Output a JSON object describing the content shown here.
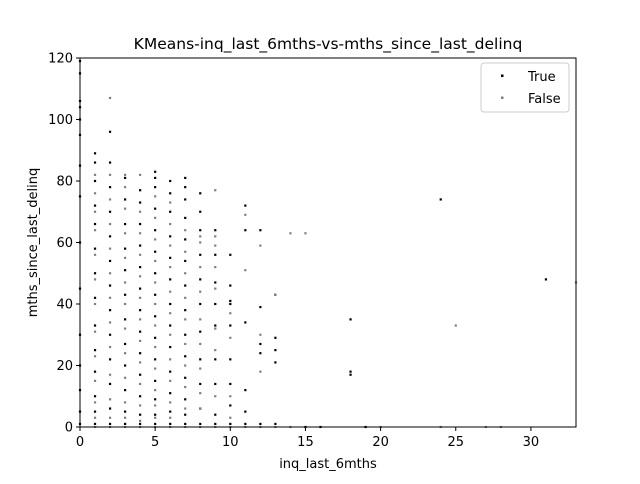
{
  "chart_data": {
    "type": "scatter",
    "title": "KMeans-inq_last_6mths-vs-mths_since_last_delinq",
    "xlabel": "inq_last_6mths",
    "ylabel": "mths_since_last_delinq",
    "xlim": [
      0,
      33
    ],
    "ylim": [
      0,
      120
    ],
    "xticks": [
      "0",
      "5",
      "10",
      "15",
      "20",
      "25",
      "30"
    ],
    "yticks": [
      "0",
      "20",
      "40",
      "60",
      "80",
      "100",
      "120"
    ],
    "grid": false,
    "legend_position": "top-right",
    "series": [
      {
        "name": "True",
        "color": "#000000",
        "points": [
          [
            0,
            1
          ],
          [
            0,
            5
          ],
          [
            0,
            12
          ],
          [
            0,
            20
          ],
          [
            0,
            30
          ],
          [
            0,
            45
          ],
          [
            0,
            60
          ],
          [
            0,
            75
          ],
          [
            0,
            85
          ],
          [
            0,
            95
          ],
          [
            0,
            100
          ],
          [
            0,
            104
          ],
          [
            0,
            106
          ],
          [
            0,
            115
          ],
          [
            0,
            119
          ],
          [
            1,
            1
          ],
          [
            1,
            5
          ],
          [
            1,
            10
          ],
          [
            1,
            18
          ],
          [
            1,
            25
          ],
          [
            1,
            33
          ],
          [
            1,
            42
          ],
          [
            1,
            50
          ],
          [
            1,
            58
          ],
          [
            1,
            66
          ],
          [
            1,
            72
          ],
          [
            1,
            80
          ],
          [
            1,
            86
          ],
          [
            1,
            89
          ],
          [
            2,
            1
          ],
          [
            2,
            6
          ],
          [
            2,
            14
          ],
          [
            2,
            22
          ],
          [
            2,
            30
          ],
          [
            2,
            38
          ],
          [
            2,
            46
          ],
          [
            2,
            54
          ],
          [
            2,
            62
          ],
          [
            2,
            70
          ],
          [
            2,
            78
          ],
          [
            2,
            86
          ],
          [
            2,
            96
          ],
          [
            3,
            1
          ],
          [
            3,
            5
          ],
          [
            3,
            12
          ],
          [
            3,
            20
          ],
          [
            3,
            27
          ],
          [
            3,
            35
          ],
          [
            3,
            43
          ],
          [
            3,
            51
          ],
          [
            3,
            58
          ],
          [
            3,
            66
          ],
          [
            3,
            74
          ],
          [
            3,
            81
          ],
          [
            4,
            1
          ],
          [
            4,
            4
          ],
          [
            4,
            10
          ],
          [
            4,
            17
          ],
          [
            4,
            24
          ],
          [
            4,
            31
          ],
          [
            4,
            38
          ],
          [
            4,
            45
          ],
          [
            4,
            52
          ],
          [
            4,
            59
          ],
          [
            4,
            66
          ],
          [
            4,
            73
          ],
          [
            4,
            77
          ],
          [
            5,
            1
          ],
          [
            5,
            4
          ],
          [
            5,
            9
          ],
          [
            5,
            15
          ],
          [
            5,
            22
          ],
          [
            5,
            29
          ],
          [
            5,
            36
          ],
          [
            5,
            43
          ],
          [
            5,
            50
          ],
          [
            5,
            57
          ],
          [
            5,
            64
          ],
          [
            5,
            71
          ],
          [
            5,
            78
          ],
          [
            5,
            81
          ],
          [
            5,
            83
          ],
          [
            6,
            1
          ],
          [
            6,
            5
          ],
          [
            6,
            11
          ],
          [
            6,
            18
          ],
          [
            6,
            26
          ],
          [
            6,
            33
          ],
          [
            6,
            40
          ],
          [
            6,
            48
          ],
          [
            6,
            55
          ],
          [
            6,
            62
          ],
          [
            6,
            70
          ],
          [
            6,
            76
          ],
          [
            6,
            80
          ],
          [
            7,
            1
          ],
          [
            7,
            4
          ],
          [
            7,
            9
          ],
          [
            7,
            16
          ],
          [
            7,
            23
          ],
          [
            7,
            30
          ],
          [
            7,
            38
          ],
          [
            7,
            46
          ],
          [
            7,
            54
          ],
          [
            7,
            61
          ],
          [
            7,
            68
          ],
          [
            7,
            74
          ],
          [
            7,
            78
          ],
          [
            7,
            81
          ],
          [
            8,
            1
          ],
          [
            8,
            6
          ],
          [
            8,
            14
          ],
          [
            8,
            22
          ],
          [
            8,
            31
          ],
          [
            8,
            40
          ],
          [
            8,
            48
          ],
          [
            8,
            56
          ],
          [
            8,
            64
          ],
          [
            8,
            70
          ],
          [
            8,
            76
          ],
          [
            9,
            1
          ],
          [
            9,
            4
          ],
          [
            9,
            14
          ],
          [
            9,
            22
          ],
          [
            9,
            33
          ],
          [
            9,
            40
          ],
          [
            9,
            47
          ],
          [
            9,
            56
          ],
          [
            9,
            64
          ],
          [
            10,
            1
          ],
          [
            10,
            7
          ],
          [
            10,
            14
          ],
          [
            10,
            22
          ],
          [
            10,
            33
          ],
          [
            10,
            40
          ],
          [
            10,
            41
          ],
          [
            10,
            46
          ],
          [
            10,
            56
          ],
          [
            11,
            1
          ],
          [
            11,
            5
          ],
          [
            11,
            12
          ],
          [
            11,
            34
          ],
          [
            11,
            64
          ],
          [
            11,
            72
          ],
          [
            12,
            1
          ],
          [
            12,
            24
          ],
          [
            12,
            27
          ],
          [
            12,
            39
          ],
          [
            12,
            64
          ],
          [
            13,
            1
          ],
          [
            13,
            21
          ],
          [
            13,
            25
          ],
          [
            13,
            29
          ],
          [
            13,
            43
          ],
          [
            15,
            0
          ],
          [
            16,
            0
          ],
          [
            18,
            17
          ],
          [
            18,
            18
          ],
          [
            18,
            35
          ],
          [
            19,
            0
          ],
          [
            24,
            74
          ],
          [
            31,
            48
          ]
        ]
      },
      {
        "name": "False",
        "color": "#7f7f7f",
        "points": [
          [
            1,
            0
          ],
          [
            1,
            3
          ],
          [
            1,
            8
          ],
          [
            1,
            15
          ],
          [
            1,
            23
          ],
          [
            1,
            31
          ],
          [
            1,
            40
          ],
          [
            1,
            48
          ],
          [
            1,
            56
          ],
          [
            1,
            64
          ],
          [
            1,
            70
          ],
          [
            1,
            76
          ],
          [
            1,
            82
          ],
          [
            2,
            0
          ],
          [
            2,
            3
          ],
          [
            2,
            9
          ],
          [
            2,
            17
          ],
          [
            2,
            26
          ],
          [
            2,
            34
          ],
          [
            2,
            42
          ],
          [
            2,
            50
          ],
          [
            2,
            58
          ],
          [
            2,
            66
          ],
          [
            2,
            74
          ],
          [
            2,
            82
          ],
          [
            2,
            107
          ],
          [
            3,
            0
          ],
          [
            3,
            3
          ],
          [
            3,
            8
          ],
          [
            3,
            16
          ],
          [
            3,
            24
          ],
          [
            3,
            32
          ],
          [
            3,
            40
          ],
          [
            3,
            47
          ],
          [
            3,
            55
          ],
          [
            3,
            63
          ],
          [
            3,
            71
          ],
          [
            3,
            78
          ],
          [
            3,
            82
          ],
          [
            4,
            0
          ],
          [
            4,
            2
          ],
          [
            4,
            7
          ],
          [
            4,
            14
          ],
          [
            4,
            21
          ],
          [
            4,
            28
          ],
          [
            4,
            35
          ],
          [
            4,
            42
          ],
          [
            4,
            49
          ],
          [
            4,
            56
          ],
          [
            4,
            63
          ],
          [
            4,
            70
          ],
          [
            4,
            82
          ],
          [
            5,
            0
          ],
          [
            5,
            3
          ],
          [
            5,
            7
          ],
          [
            5,
            12
          ],
          [
            5,
            19
          ],
          [
            5,
            26
          ],
          [
            5,
            33
          ],
          [
            5,
            40
          ],
          [
            5,
            47
          ],
          [
            5,
            54
          ],
          [
            5,
            61
          ],
          [
            5,
            68
          ],
          [
            5,
            75
          ],
          [
            6,
            0
          ],
          [
            6,
            3
          ],
          [
            6,
            8
          ],
          [
            6,
            15
          ],
          [
            6,
            22
          ],
          [
            6,
            30
          ],
          [
            6,
            37
          ],
          [
            6,
            44
          ],
          [
            6,
            52
          ],
          [
            6,
            59
          ],
          [
            6,
            66
          ],
          [
            6,
            73
          ],
          [
            7,
            0
          ],
          [
            7,
            6
          ],
          [
            7,
            13
          ],
          [
            7,
            20
          ],
          [
            7,
            27
          ],
          [
            7,
            35
          ],
          [
            7,
            42
          ],
          [
            7,
            50
          ],
          [
            7,
            57
          ],
          [
            7,
            64
          ],
          [
            8,
            0
          ],
          [
            8,
            6
          ],
          [
            8,
            11
          ],
          [
            8,
            19
          ],
          [
            8,
            27
          ],
          [
            8,
            35
          ],
          [
            8,
            44
          ],
          [
            8,
            52
          ],
          [
            8,
            60
          ],
          [
            8,
            62
          ],
          [
            9,
            0
          ],
          [
            9,
            10
          ],
          [
            9,
            25
          ],
          [
            9,
            32
          ],
          [
            9,
            45
          ],
          [
            9,
            52
          ],
          [
            9,
            59
          ],
          [
            9,
            62
          ],
          [
            9,
            77
          ],
          [
            10,
            0
          ],
          [
            10,
            3
          ],
          [
            10,
            10
          ],
          [
            10,
            29
          ],
          [
            10,
            37
          ],
          [
            11,
            0
          ],
          [
            11,
            51
          ],
          [
            11,
            69
          ],
          [
            12,
            0
          ],
          [
            12,
            18
          ],
          [
            12,
            30
          ],
          [
            12,
            59
          ],
          [
            13,
            0
          ],
          [
            13,
            43
          ],
          [
            14,
            0
          ],
          [
            14,
            63
          ],
          [
            15,
            63
          ],
          [
            20,
            0
          ],
          [
            24,
            0
          ],
          [
            25,
            33
          ],
          [
            27,
            0
          ],
          [
            28,
            0
          ],
          [
            33,
            47
          ]
        ]
      }
    ]
  }
}
